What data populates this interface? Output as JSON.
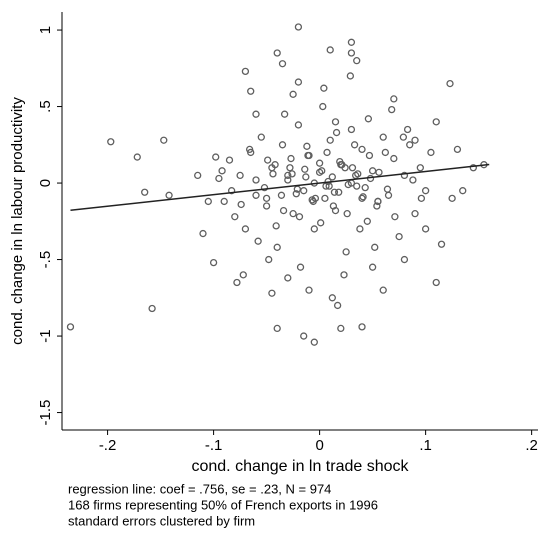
{
  "chart_data": {
    "type": "scatter",
    "x_label": "cond. change in ln trade shock",
    "y_label": "cond. change in ln labour productivity",
    "notes": [
      "regression line: coef =  .756, se =  .23, N = 974",
      "168 firms representing 50% of French exports in 1996",
      "standard errors clustered by firm"
    ],
    "xlim": [
      -0.243,
      0.206
    ],
    "ylim": [
      -1.614,
      1.118
    ],
    "xticks": [
      {
        "value": -0.2,
        "label": "-.2"
      },
      {
        "value": -0.1,
        "label": "-.1"
      },
      0,
      {
        "value": 0.1,
        "label": ".1"
      },
      {
        "value": 0.2,
        "label": ".2"
      }
    ],
    "yticks": [
      -1.5,
      -1,
      {
        "value": -0.5,
        "label": "-.5"
      },
      0,
      {
        "value": 0.5,
        "label": ".5"
      },
      1
    ],
    "marker_color": "#5f5f5f",
    "line_color": "#222222",
    "fit_line": {
      "x": [
        -0.235,
        0.16
      ],
      "y": [
        -0.178,
        0.121
      ]
    },
    "x": [
      -0.235,
      -0.197,
      -0.172,
      -0.165,
      -0.158,
      -0.147,
      -0.142,
      -0.11,
      -0.1,
      -0.098,
      -0.04,
      -0.02,
      -0.035,
      -0.07,
      -0.065,
      0.01,
      0.03,
      0.03,
      0.035,
      0.123,
      0.155,
      0.145,
      0.11,
      0.11,
      0.08,
      0.1,
      0.115,
      -0.04,
      -0.015,
      -0.005,
      0.02,
      0.04,
      -0.078,
      -0.072,
      -0.095,
      -0.09,
      -0.085,
      -0.08,
      -0.075,
      -0.07,
      -0.065,
      -0.06,
      -0.055,
      -0.05,
      -0.045,
      -0.04,
      -0.035,
      -0.03,
      -0.025,
      -0.02,
      -0.015,
      -0.01,
      -0.005,
      0,
      0.005,
      0.01,
      0.015,
      0.02,
      0.025,
      0.03,
      0.035,
      0.04,
      0.045,
      0.05,
      0.055,
      0.06,
      0.065,
      0.07,
      0.075,
      0.08,
      0.085,
      0.09,
      0.095,
      0.1,
      -0.092,
      -0.083,
      -0.074,
      -0.066,
      -0.058,
      -0.049,
      -0.041,
      -0.033,
      -0.026,
      -0.018,
      -0.011,
      -0.004,
      0.003,
      0.009,
      0.016,
      0.023,
      0.031,
      0.038,
      0.046,
      0.054,
      0.062,
      0.071,
      0.079,
      0.088,
      0.096,
      0.105,
      -0.06,
      -0.052,
      -0.044,
      -0.036,
      -0.028,
      -0.021,
      -0.013,
      -0.006,
      0.002,
      0.008,
      0.014,
      0.021,
      0.027,
      0.034,
      0.041,
      0.048,
      0.056,
      0.064,
      -0.05,
      -0.042,
      -0.034,
      -0.027,
      -0.019,
      -0.012,
      -0.005,
      0.001,
      0.007,
      0.013,
      0.019,
      0.026,
      0.033,
      0.04,
      0.047,
      0.055,
      -0.03,
      -0.022,
      -0.014,
      -0.007,
      0,
      0.006,
      0.012,
      0.018,
      0.024,
      0.03,
      0.036,
      0.043,
      -0.048,
      -0.025,
      -0.01,
      0.004,
      0.017,
      0.029,
      0.052,
      0.068,
      0.083,
      0.012,
      -0.03,
      -0.02,
      0.05,
      0.07,
      -0.06,
      0.09,
      0.13,
      0.125,
      0.135,
      -0.115,
      -0.105,
      0.06,
      -0.045,
      0.015
    ],
    "y": [
      -0.94,
      0.27,
      0.17,
      -0.06,
      -0.82,
      0.28,
      -0.08,
      -0.33,
      -0.52,
      0.17,
      0.85,
      1.02,
      0.78,
      0.73,
      0.6,
      0.87,
      0.92,
      0.85,
      0.8,
      0.65,
      0.12,
      0.1,
      0.4,
      -0.65,
      -0.5,
      -0.3,
      -0.4,
      -0.95,
      -1.0,
      -1.04,
      -0.95,
      -0.94,
      -0.65,
      -0.6,
      0.03,
      -0.12,
      0.15,
      -0.22,
      0.05,
      -0.3,
      0.2,
      -0.08,
      0.3,
      -0.15,
      0.1,
      -0.42,
      0.25,
      0.02,
      -0.2,
      0.38,
      -0.05,
      0.18,
      -0.3,
      0.07,
      -0.1,
      0.28,
      -0.18,
      0.12,
      -0.45,
      0.35,
      -0.02,
      0.22,
      -0.25,
      0.08,
      -0.12,
      0.3,
      -0.08,
      0.16,
      -0.35,
      0.05,
      0.25,
      -0.2,
      0.1,
      -0.05,
      0.08,
      -0.05,
      -0.14,
      0.22,
      -0.38,
      0.15,
      -0.28,
      0.45,
      0.06,
      -0.55,
      0.18,
      -0.1,
      0.5,
      -0.02,
      0.33,
      -0.6,
      0.1,
      -0.3,
      0.42,
      -0.15,
      0.2,
      -0.22,
      0.3,
      0.02,
      -0.1,
      0.2,
      0.02,
      -0.03,
      0.06,
      -0.08,
      0.1,
      -0.04,
      0.04,
      -0.12,
      0.08,
      0.01,
      -0.06,
      0.12,
      -0.01,
      0.05,
      -0.09,
      0.03,
      0.07,
      -0.04,
      -0.1,
      0.12,
      -0.18,
      0.16,
      -0.22,
      0.24,
      0.0,
      -0.26,
      0.2,
      -0.15,
      0.14,
      -0.2,
      0.25,
      -0.1,
      0.18,
      -0.12,
      0.05,
      -0.07,
      0.09,
      -0.11,
      0.13,
      -0.02,
      0.04,
      -0.06,
      0.1,
      0.0,
      0.06,
      -0.03,
      -0.5,
      0.58,
      -0.7,
      0.62,
      -0.8,
      0.7,
      -0.42,
      0.48,
      0.35,
      -0.75,
      -0.62,
      0.66,
      -0.55,
      0.55,
      0.45,
      0.28,
      0.22,
      -0.1,
      -0.05,
      0.05,
      -0.12,
      -0.7,
      -0.72,
      0.4
    ]
  }
}
